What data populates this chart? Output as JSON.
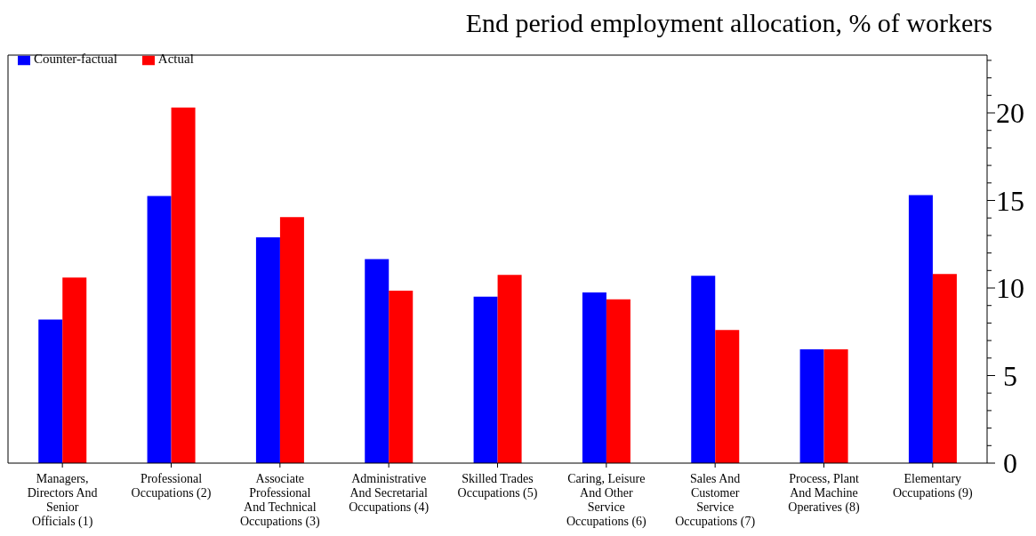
{
  "chart_data": {
    "type": "bar",
    "title": "End period employment allocation, % of workers",
    "categories": [
      "Managers, Directors And Senior Officials (1)",
      "Professional Occupations (2)",
      "Associate Professional And Technical Occupations (3)",
      "Administrative And Secretarial Occupations (4)",
      "Skilled Trades Occupations (5)",
      "Caring, Leisure And Other Service Occupations (6)",
      "Sales And Customer Service Occupations (7)",
      "Process, Plant And Machine Operatives (8)",
      "Elementary Occupations (9)"
    ],
    "series": [
      {
        "name": "Counter-factual",
        "color": "#0000ff",
        "values": [
          8.2,
          15.25,
          12.9,
          11.65,
          9.5,
          9.75,
          10.7,
          6.5,
          15.3
        ]
      },
      {
        "name": "Actual",
        "color": "#ff0000",
        "values": [
          10.6,
          20.3,
          14.05,
          9.85,
          10.75,
          9.35,
          7.6,
          6.5,
          10.8
        ]
      }
    ],
    "ylim": [
      0,
      23.3
    ],
    "yticks": [
      0,
      {
        "value": 1,
        "label": null
      },
      {
        "value": 2,
        "label": null
      },
      {
        "value": 3,
        "label": null
      },
      {
        "value": 4,
        "label": null
      },
      5,
      {
        "value": 6,
        "label": null
      },
      {
        "value": 7,
        "label": null
      },
      {
        "value": 8,
        "label": null
      },
      {
        "value": 9,
        "label": null
      },
      10,
      {
        "value": 11,
        "label": null
      },
      {
        "value": 12,
        "label": null
      },
      {
        "value": 13,
        "label": null
      },
      {
        "value": 14,
        "label": null
      },
      15,
      {
        "value": 16,
        "label": null
      },
      {
        "value": 17,
        "label": null
      },
      {
        "value": 18,
        "label": null
      },
      {
        "value": 19,
        "label": null
      },
      20,
      {
        "value": 21,
        "label": null
      },
      {
        "value": 22,
        "label": null
      },
      {
        "value": 23,
        "label": null
      }
    ],
    "legend": "top left"
  }
}
